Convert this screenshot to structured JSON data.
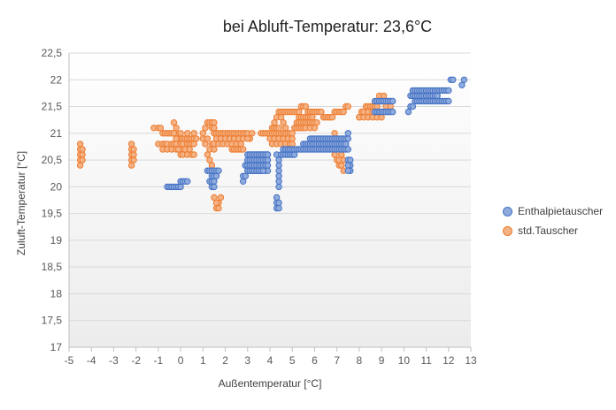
{
  "chart_data": {
    "type": "scatter",
    "title": "bei Abluft-Temperatur: 23,6°C",
    "xlabel": "Außentemperatur [°C]",
    "ylabel": "Zuluft-Temperatur [°C]",
    "xlim": [
      -5,
      13
    ],
    "ylim": [
      17,
      22.5
    ],
    "x_ticks": [
      "-5",
      "-4",
      "-3",
      "-2",
      "-1",
      "0",
      "1",
      "2",
      "3",
      "4",
      "5",
      "6",
      "7",
      "8",
      "9",
      "10",
      "11",
      "12",
      "13"
    ],
    "y_ticks": [
      "17",
      "17,5",
      "18",
      "18,5",
      "19",
      "19,5",
      "20",
      "20,5",
      "21",
      "21,5",
      "22",
      "22,5"
    ],
    "grid": {
      "horizontal": true,
      "vertical": false
    },
    "legend_position": "right",
    "background": "gradient-white-to-light-gray",
    "series": [
      {
        "name": "std.Tauscher",
        "color": "#ED7D31",
        "fill": "#F4B183",
        "x": [
          -4.5,
          -4.5,
          -4.5,
          -4.5,
          -4.5,
          -4.4,
          -4.4,
          -4.4,
          -2.2,
          -2.2,
          -2.2,
          -2.2,
          -2.2,
          -2.1,
          -2.1,
          -2.1,
          -1.2,
          -1.0,
          -0.9,
          -0.8,
          -0.7,
          -0.6,
          -0.5,
          -0.4,
          -0.3,
          -0.2,
          -0.1,
          0.0,
          0.1,
          0.2,
          0.3,
          0.4,
          0.5,
          0.6,
          0.7,
          -1.0,
          -0.8,
          -0.7,
          -0.6,
          -0.4,
          -0.3,
          -0.2,
          0.0,
          0.1,
          0.3,
          0.4,
          0.5,
          0.6,
          -0.8,
          -0.6,
          -0.4,
          -0.2,
          0.0,
          0.2,
          0.4,
          -0.3,
          -0.2,
          -0.2,
          -0.1,
          0.0,
          0.1,
          0.3,
          0.5,
          0.6,
          -0.3,
          0.0,
          0.3,
          0.6,
          1.0,
          1.0,
          1.1,
          1.1,
          1.2,
          1.2,
          1.3,
          1.3,
          1.4,
          1.4,
          1.5,
          1.5,
          1.2,
          1.3,
          1.4,
          1.5,
          1.4,
          1.5,
          1.6,
          1.7,
          1.8,
          1.9,
          2.0,
          2.1,
          2.2,
          2.3,
          2.4,
          2.5,
          2.6,
          2.7,
          2.8,
          2.9,
          3.0,
          3.1,
          3.2,
          1.6,
          1.8,
          2.0,
          2.2,
          2.4,
          2.6,
          2.8,
          3.0,
          1.5,
          1.7,
          1.9,
          2.1,
          2.3,
          2.5,
          2.7,
          2.3,
          2.4,
          2.5,
          2.6,
          2.7,
          2.8,
          1.5,
          1.6,
          1.7,
          1.8,
          1.5,
          1.6,
          1.7,
          3.6,
          3.7,
          3.8,
          3.9,
          4.0,
          4.1,
          4.2,
          4.3,
          4.4,
          4.5,
          4.6,
          4.7,
          4.8,
          4.9,
          5.0,
          4.0,
          4.2,
          4.4,
          4.6,
          4.8,
          5.0,
          4.1,
          4.3,
          4.5,
          4.7,
          4.9,
          5.0,
          4.1,
          4.2,
          4.3,
          4.4,
          4.2,
          4.3,
          4.4,
          4.5,
          4.6,
          4.7,
          4.5,
          4.6,
          4.7,
          4.8,
          4.9,
          5.0,
          5.1,
          5.2,
          5.3,
          5.4,
          5.5,
          5.6,
          5.7,
          5.8,
          5.9,
          6.0,
          6.1,
          6.2,
          6.3,
          5.3,
          5.4,
          5.5,
          5.6,
          5.7,
          5.8,
          5.9,
          5.2,
          5.3,
          5.4,
          5.5,
          5.6,
          5.7,
          5.8,
          5.9,
          6.0,
          6.1,
          5.1,
          5.2,
          5.3,
          5.4,
          5.5,
          5.6,
          5.8,
          6.0,
          6.4,
          6.5,
          6.6,
          6.7,
          6.8,
          6.9,
          7.0,
          7.1,
          7.2,
          7.3,
          7.4,
          7.5,
          6.9,
          7.0,
          7.1,
          7.2,
          6.9,
          7.0,
          7.1,
          7.0,
          7.1,
          7.2,
          7.1,
          7.2,
          7.3,
          7.2,
          7.3,
          8.0,
          8.1,
          8.2,
          8.3,
          8.4,
          8.5,
          8.6,
          8.7,
          8.8,
          8.9,
          9.0,
          9.1,
          9.2,
          9.3,
          9.4,
          8.2,
          8.4,
          8.6,
          8.8,
          9.0,
          9.2,
          8.0,
          8.2,
          8.4,
          8.6,
          8.8,
          9.0,
          8.9,
          9.1,
          9.0,
          9.2,
          9.4,
          9.2,
          9.3
        ],
        "y": [
          20.4,
          20.5,
          20.6,
          20.7,
          20.8,
          20.5,
          20.6,
          20.7,
          20.4,
          20.5,
          20.6,
          20.7,
          20.8,
          20.5,
          20.6,
          20.7,
          21.1,
          21.1,
          21.1,
          21.0,
          21.0,
          21.0,
          21.0,
          21.0,
          21.0,
          21.0,
          20.9,
          20.9,
          20.9,
          20.9,
          20.9,
          20.9,
          20.9,
          20.9,
          20.9,
          20.8,
          20.8,
          20.8,
          20.8,
          20.8,
          20.8,
          20.8,
          20.8,
          20.8,
          20.8,
          20.8,
          20.8,
          20.8,
          20.7,
          20.7,
          20.7,
          20.7,
          20.7,
          20.7,
          20.7,
          21.2,
          21.1,
          20.9,
          20.7,
          20.6,
          20.6,
          20.6,
          20.6,
          20.6,
          21.0,
          21.0,
          21.0,
          21.0,
          21.0,
          20.9,
          21.1,
          20.8,
          21.2,
          20.9,
          21.2,
          20.7,
          21.2,
          20.8,
          21.2,
          21.0,
          20.6,
          20.5,
          20.4,
          20.3,
          21.1,
          21.1,
          21.0,
          21.0,
          21.0,
          21.0,
          21.0,
          21.0,
          21.0,
          21.0,
          21.0,
          21.0,
          21.0,
          21.0,
          21.0,
          21.0,
          21.0,
          20.9,
          21.0,
          20.9,
          20.9,
          20.9,
          20.9,
          20.9,
          20.9,
          20.9,
          20.9,
          20.8,
          20.8,
          20.8,
          20.8,
          20.8,
          20.8,
          20.8,
          20.7,
          20.7,
          20.7,
          20.7,
          20.7,
          20.7,
          20.7,
          19.6,
          19.7,
          19.8,
          19.8,
          19.7,
          19.6,
          21.0,
          21.0,
          21.0,
          21.0,
          21.0,
          21.0,
          21.0,
          21.0,
          21.0,
          21.0,
          21.0,
          21.0,
          21.0,
          21.0,
          21.0,
          20.9,
          20.9,
          20.9,
          20.9,
          20.9,
          20.9,
          20.8,
          20.8,
          20.8,
          20.8,
          20.8,
          20.8,
          21.1,
          21.1,
          21.1,
          21.1,
          21.2,
          21.3,
          21.4,
          21.3,
          21.2,
          21.1,
          21.4,
          21.4,
          21.4,
          21.4,
          21.4,
          21.4,
          21.4,
          21.4,
          21.4,
          21.5,
          21.5,
          21.5,
          21.4,
          21.4,
          21.4,
          21.4,
          21.4,
          21.4,
          21.4,
          21.3,
          21.3,
          21.3,
          21.3,
          21.3,
          21.3,
          21.3,
          21.2,
          21.2,
          21.2,
          21.2,
          21.2,
          21.2,
          21.2,
          21.2,
          21.2,
          21.2,
          21.1,
          21.1,
          21.1,
          21.1,
          21.1,
          21.1,
          21.1,
          21.1,
          21.3,
          21.3,
          21.3,
          21.3,
          21.3,
          21.4,
          21.4,
          21.4,
          21.4,
          21.4,
          21.5,
          21.5,
          21.0,
          20.9,
          20.8,
          20.7,
          20.6,
          20.5,
          20.4,
          20.8,
          20.7,
          20.6,
          20.5,
          20.4,
          20.3,
          20.6,
          20.5,
          21.3,
          21.4,
          21.4,
          21.5,
          21.5,
          21.5,
          21.5,
          21.5,
          21.5,
          21.6,
          21.6,
          21.6,
          21.6,
          21.6,
          21.6,
          21.4,
          21.4,
          21.4,
          21.4,
          21.4,
          21.4,
          21.3,
          21.3,
          21.3,
          21.3,
          21.3,
          21.3,
          21.7,
          21.7,
          21.6,
          21.5,
          21.5,
          21.4,
          21.4
        ]
      },
      {
        "name": "Enthalpietauscher",
        "color": "#4472C4",
        "fill": "#8FAADC",
        "x": [
          -0.6,
          -0.5,
          -0.4,
          -0.3,
          -0.2,
          -0.1,
          0.0,
          0.0,
          0.1,
          0.2,
          0.3,
          1.2,
          1.3,
          1.4,
          1.5,
          1.6,
          1.7,
          1.4,
          1.5,
          1.6,
          1.3,
          1.4,
          1.5,
          1.4,
          1.5,
          2.8,
          2.8,
          2.9,
          3.0,
          3.1,
          3.2,
          3.3,
          3.4,
          3.5,
          3.6,
          3.7,
          3.8,
          3.9,
          2.9,
          3.0,
          3.1,
          3.2,
          3.3,
          3.4,
          3.5,
          3.6,
          3.7,
          3.8,
          3.0,
          3.1,
          3.2,
          3.3,
          3.4,
          3.5,
          3.6,
          3.7,
          3.8,
          3.1,
          3.2,
          3.3,
          3.4,
          3.5,
          3.6,
          3.7,
          3.8,
          3.9,
          3.0,
          3.1,
          3.2,
          3.3,
          3.4,
          3.5,
          3.6,
          3.7,
          2.9,
          3.0,
          3.1,
          3.2,
          3.3,
          3.4,
          3.5,
          3.6,
          3.7,
          3.8,
          3.9,
          3.0,
          3.1,
          3.2,
          3.3,
          3.4,
          3.5,
          3.6,
          3.7,
          3.8,
          3.9,
          3.0,
          3.1,
          3.2,
          3.3,
          3.4,
          3.5,
          3.6,
          3.7,
          3.8,
          3.9,
          4.3,
          4.3,
          4.3,
          4.3,
          4.4,
          4.4,
          4.4,
          4.4,
          4.4,
          4.4,
          4.4,
          4.4,
          4.5,
          4.6,
          4.7,
          4.8,
          4.9,
          5.0,
          5.1,
          4.6,
          4.7,
          4.8,
          4.9,
          5.0,
          5.1,
          5.2,
          5.3,
          5.4,
          5.5,
          5.6,
          5.7,
          5.8,
          5.9,
          6.0,
          6.1,
          6.2,
          6.3,
          6.4,
          6.5,
          6.6,
          6.7,
          6.8,
          6.9,
          7.0,
          7.1,
          7.2,
          7.3,
          7.4,
          7.5,
          5.5,
          5.6,
          5.7,
          5.8,
          5.9,
          6.0,
          6.1,
          6.2,
          6.3,
          6.4,
          6.5,
          6.6,
          6.7,
          6.8,
          6.9,
          7.0,
          7.1,
          7.2,
          7.3,
          7.4,
          5.8,
          5.9,
          6.0,
          6.1,
          6.2,
          6.3,
          6.4,
          6.5,
          6.6,
          6.7,
          6.8,
          6.9,
          7.0,
          7.1,
          7.2,
          7.3,
          7.4,
          7.5,
          7.5,
          7.5,
          7.6,
          7.6,
          7.5,
          7.6,
          7.5,
          8.7,
          8.8,
          8.9,
          9.0,
          9.1,
          9.2,
          9.3,
          9.4,
          9.5,
          8.7,
          8.8,
          8.9,
          9.0,
          9.1,
          9.2,
          9.3,
          9.4,
          9.5,
          10.2,
          10.3,
          10.4,
          10.5,
          10.6,
          10.7,
          10.8,
          10.9,
          11.0,
          11.1,
          11.2,
          11.3,
          11.4,
          11.5,
          11.6,
          11.7,
          11.8,
          11.9,
          12.0,
          10.3,
          10.4,
          10.5,
          10.6,
          10.7,
          10.8,
          10.9,
          11.0,
          11.1,
          11.2,
          11.3,
          11.4,
          11.5,
          10.4,
          10.5,
          10.6,
          10.7,
          10.8,
          10.9,
          11.0,
          11.1,
          11.2,
          11.3,
          11.4,
          11.5,
          11.6,
          11.7,
          11.8,
          11.9,
          12.0,
          12.1,
          12.2,
          12.6,
          12.7
        ],
        "y": [
          20.0,
          20.0,
          20.0,
          20.0,
          20.0,
          20.0,
          20.0,
          20.1,
          20.1,
          20.1,
          20.1,
          20.3,
          20.3,
          20.3,
          20.3,
          20.3,
          20.3,
          20.2,
          20.2,
          20.2,
          20.1,
          20.1,
          20.1,
          20.0,
          20.0,
          20.1,
          20.2,
          20.2,
          20.3,
          20.3,
          20.3,
          20.3,
          20.3,
          20.3,
          20.3,
          20.3,
          20.3,
          20.3,
          20.4,
          20.4,
          20.4,
          20.4,
          20.4,
          20.4,
          20.4,
          20.4,
          20.4,
          20.4,
          20.5,
          20.5,
          20.5,
          20.5,
          20.5,
          20.5,
          20.5,
          20.5,
          20.5,
          20.6,
          20.6,
          20.6,
          20.6,
          20.6,
          20.6,
          20.6,
          20.6,
          20.6,
          20.3,
          20.3,
          20.3,
          20.3,
          20.3,
          20.3,
          20.3,
          20.3,
          20.4,
          20.4,
          20.4,
          20.4,
          20.4,
          20.4,
          20.4,
          20.4,
          20.4,
          20.4,
          20.4,
          20.5,
          20.5,
          20.5,
          20.5,
          20.5,
          20.5,
          20.5,
          20.5,
          20.5,
          20.5,
          20.6,
          20.6,
          20.6,
          20.6,
          20.6,
          20.6,
          20.6,
          20.6,
          20.6,
          20.6,
          19.6,
          19.7,
          19.8,
          20.6,
          19.6,
          19.7,
          20.0,
          20.1,
          20.2,
          20.3,
          20.4,
          20.5,
          20.6,
          20.6,
          20.6,
          20.6,
          20.6,
          20.6,
          20.6,
          20.7,
          20.7,
          20.7,
          20.7,
          20.7,
          20.7,
          20.7,
          20.7,
          20.7,
          20.7,
          20.7,
          20.7,
          20.7,
          20.7,
          20.7,
          20.7,
          20.7,
          20.7,
          20.7,
          20.7,
          20.7,
          20.7,
          20.7,
          20.7,
          20.7,
          20.7,
          20.7,
          20.7,
          20.7,
          20.7,
          20.8,
          20.8,
          20.8,
          20.8,
          20.8,
          20.8,
          20.8,
          20.8,
          20.8,
          20.8,
          20.8,
          20.8,
          20.8,
          20.8,
          20.8,
          20.8,
          20.8,
          20.8,
          20.8,
          20.8,
          20.9,
          20.9,
          20.9,
          20.9,
          20.9,
          20.9,
          20.9,
          20.9,
          20.9,
          20.9,
          20.9,
          20.9,
          20.9,
          20.9,
          20.9,
          20.9,
          20.9,
          20.9,
          21.0,
          20.5,
          20.5,
          20.4,
          20.4,
          20.3,
          20.3,
          21.4,
          21.4,
          21.4,
          21.4,
          21.4,
          21.4,
          21.4,
          21.4,
          21.4,
          21.6,
          21.6,
          21.6,
          21.6,
          21.6,
          21.6,
          21.6,
          21.6,
          21.6,
          21.4,
          21.5,
          21.5,
          21.6,
          21.6,
          21.6,
          21.6,
          21.6,
          21.6,
          21.6,
          21.6,
          21.6,
          21.6,
          21.6,
          21.6,
          21.6,
          21.6,
          21.6,
          21.6,
          21.7,
          21.7,
          21.7,
          21.7,
          21.7,
          21.7,
          21.7,
          21.7,
          21.7,
          21.7,
          21.7,
          21.7,
          21.7,
          21.8,
          21.8,
          21.8,
          21.8,
          21.8,
          21.8,
          21.8,
          21.8,
          21.8,
          21.8,
          21.8,
          21.8,
          21.8,
          21.8,
          21.8,
          21.8,
          21.8,
          22.0,
          22.0,
          21.9,
          22.0
        ]
      }
    ]
  }
}
